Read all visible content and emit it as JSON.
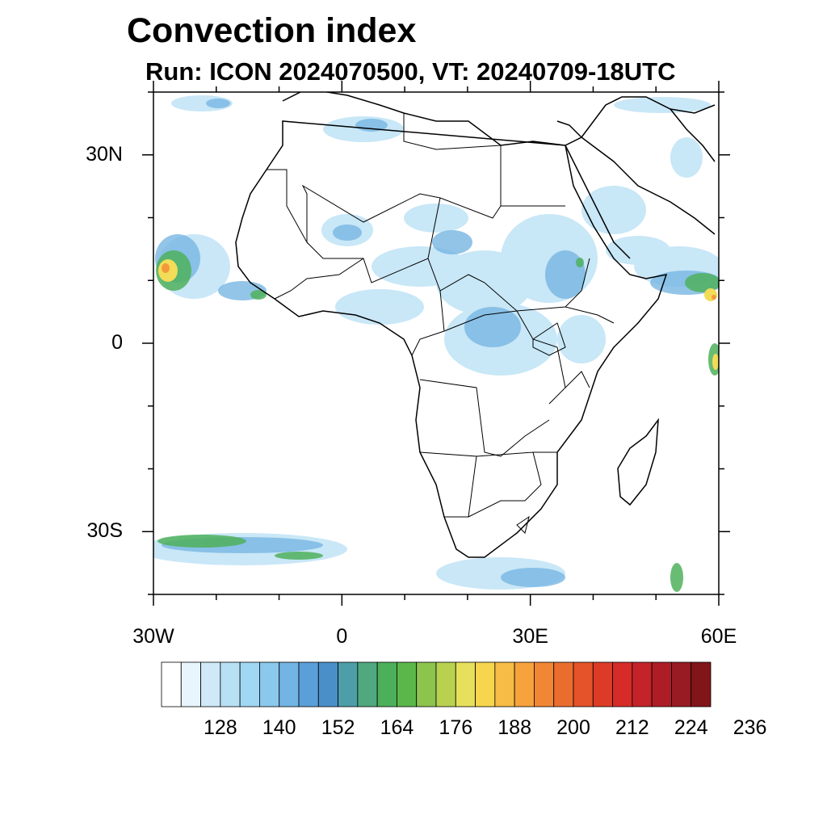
{
  "title": "Convection index",
  "subtitle": "Run: ICON 2024070500,  VT: 20240709-18UTC",
  "map": {
    "lon_range": [
      -30,
      60
    ],
    "lat_range": [
      -40,
      40
    ],
    "lat_ticks": [
      {
        "value": 30,
        "label": "30N"
      },
      {
        "value": 0,
        "label": "0"
      },
      {
        "value": -30,
        "label": "30S"
      }
    ],
    "lon_ticks": [
      {
        "value": -30,
        "label": "30W"
      },
      {
        "value": 0,
        "label": "0"
      },
      {
        "value": 30,
        "label": "30E"
      },
      {
        "value": 60,
        "label": "60E"
      }
    ]
  },
  "colorbar": {
    "labels": [
      "128",
      "140",
      "152",
      "164",
      "176",
      "188",
      "200",
      "212",
      "224",
      "236"
    ],
    "colors": [
      "#ffffff",
      "#e9f5fc",
      "#cfe9f8",
      "#b8e0f5",
      "#a0d7f3",
      "#8ac9ec",
      "#72b4e3",
      "#5b9fd8",
      "#4a8fc8",
      "#4d9ea8",
      "#4fa87e",
      "#4cb05a",
      "#5ab84a",
      "#8cc44e",
      "#b8d14f",
      "#e7e05c",
      "#f7d64e",
      "#f6bc45",
      "#f6a23d",
      "#f18735",
      "#ea6d2e",
      "#e45329",
      "#dd3b27",
      "#d62b28",
      "#c4232a",
      "#ae1d26",
      "#981a22",
      "#821519"
    ]
  }
}
